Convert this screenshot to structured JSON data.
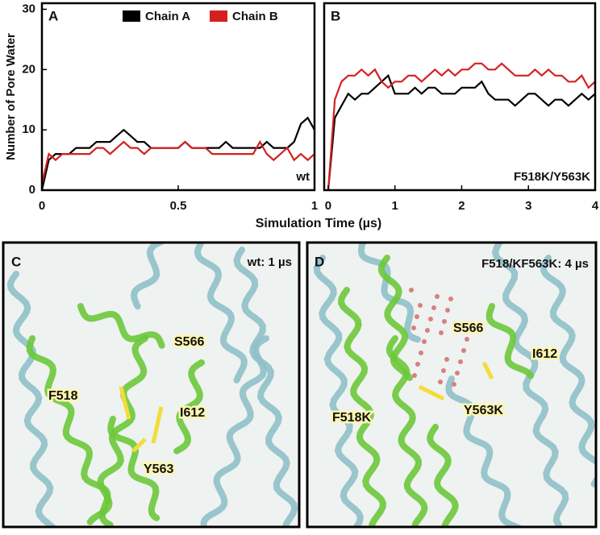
{
  "chart_data": [
    {
      "type": "line",
      "panel": "A",
      "y_label": "Number of Pore Water",
      "x_label": "Simulation Time (µs)",
      "annotation": "wt",
      "x": [
        0,
        0.025,
        0.05,
        0.075,
        0.1,
        0.125,
        0.15,
        0.175,
        0.2,
        0.225,
        0.25,
        0.275,
        0.3,
        0.325,
        0.35,
        0.375,
        0.4,
        0.425,
        0.45,
        0.475,
        0.5,
        0.525,
        0.55,
        0.575,
        0.6,
        0.625,
        0.65,
        0.675,
        0.7,
        0.725,
        0.75,
        0.775,
        0.8,
        0.825,
        0.85,
        0.875,
        0.9,
        0.925,
        0.95,
        0.975,
        1
      ],
      "series": [
        {
          "name": "Chain A",
          "color": "#000000",
          "values": [
            0,
            5,
            6,
            6,
            6,
            7,
            7,
            7,
            8,
            8,
            8,
            9,
            10,
            9,
            8,
            8,
            7,
            7,
            7,
            7,
            7,
            8,
            7,
            7,
            7,
            7,
            7,
            8,
            7,
            7,
            7,
            7,
            7,
            8,
            7,
            7,
            7,
            8,
            11,
            12,
            10
          ]
        },
        {
          "name": "Chain B",
          "color": "#d42020",
          "values": [
            1,
            6,
            5,
            6,
            6,
            6,
            6,
            6,
            7,
            7,
            6,
            7,
            8,
            7,
            7,
            6,
            7,
            7,
            7,
            7,
            7,
            8,
            7,
            7,
            7,
            6,
            6,
            6,
            6,
            6,
            6,
            6,
            8,
            6,
            5,
            6,
            7,
            5,
            6,
            5,
            6
          ]
        }
      ],
      "xlim": [
        0,
        1
      ],
      "xticks": [
        0,
        0.5,
        1
      ],
      "ylim": [
        0,
        31
      ],
      "yticks": [
        0,
        10,
        20,
        30
      ]
    },
    {
      "type": "line",
      "panel": "B",
      "annotation": "F518K/Y563K",
      "x": [
        0,
        0.1,
        0.2,
        0.3,
        0.4,
        0.5,
        0.6,
        0.7,
        0.8,
        0.9,
        1,
        1.1,
        1.2,
        1.3,
        1.4,
        1.5,
        1.6,
        1.7,
        1.8,
        1.9,
        2,
        2.1,
        2.2,
        2.3,
        2.4,
        2.5,
        2.6,
        2.7,
        2.8,
        2.9,
        3,
        3.1,
        3.2,
        3.3,
        3.4,
        3.5,
        3.6,
        3.7,
        3.8,
        3.9,
        4
      ],
      "series": [
        {
          "color": "#000000",
          "values": [
            0,
            12,
            14,
            16,
            15,
            16,
            16,
            17,
            18,
            19,
            16,
            16,
            16,
            17,
            16,
            17,
            17,
            16,
            16,
            16,
            17,
            17,
            17,
            18,
            16,
            15,
            15,
            15,
            14,
            15,
            16,
            16,
            15,
            14,
            15,
            15,
            14,
            15,
            16,
            15,
            16
          ]
        },
        {
          "color": "#d42020",
          "values": [
            0,
            15,
            18,
            19,
            19,
            20,
            19,
            20,
            18,
            17,
            18,
            18,
            19,
            19,
            18,
            19,
            20,
            19,
            20,
            19,
            20,
            20,
            21,
            21,
            20,
            20,
            21,
            20,
            19,
            19,
            19,
            20,
            19,
            20,
            19,
            19,
            18,
            18,
            19,
            17,
            18
          ]
        }
      ],
      "xlim": [
        -0.06,
        4
      ],
      "xticks": [
        0,
        1,
        2,
        3,
        4
      ],
      "ylim": [
        0,
        31
      ]
    }
  ],
  "panels": [
    {
      "letter": "C",
      "caption": "wt: 1 µs",
      "residues": [
        "F518",
        "S566",
        "I612",
        "Y563"
      ]
    },
    {
      "letter": "D",
      "caption": "F518/KF563K: 4 µs",
      "residues": [
        "S566",
        "I612",
        "F518K",
        "Y563K"
      ]
    }
  ]
}
